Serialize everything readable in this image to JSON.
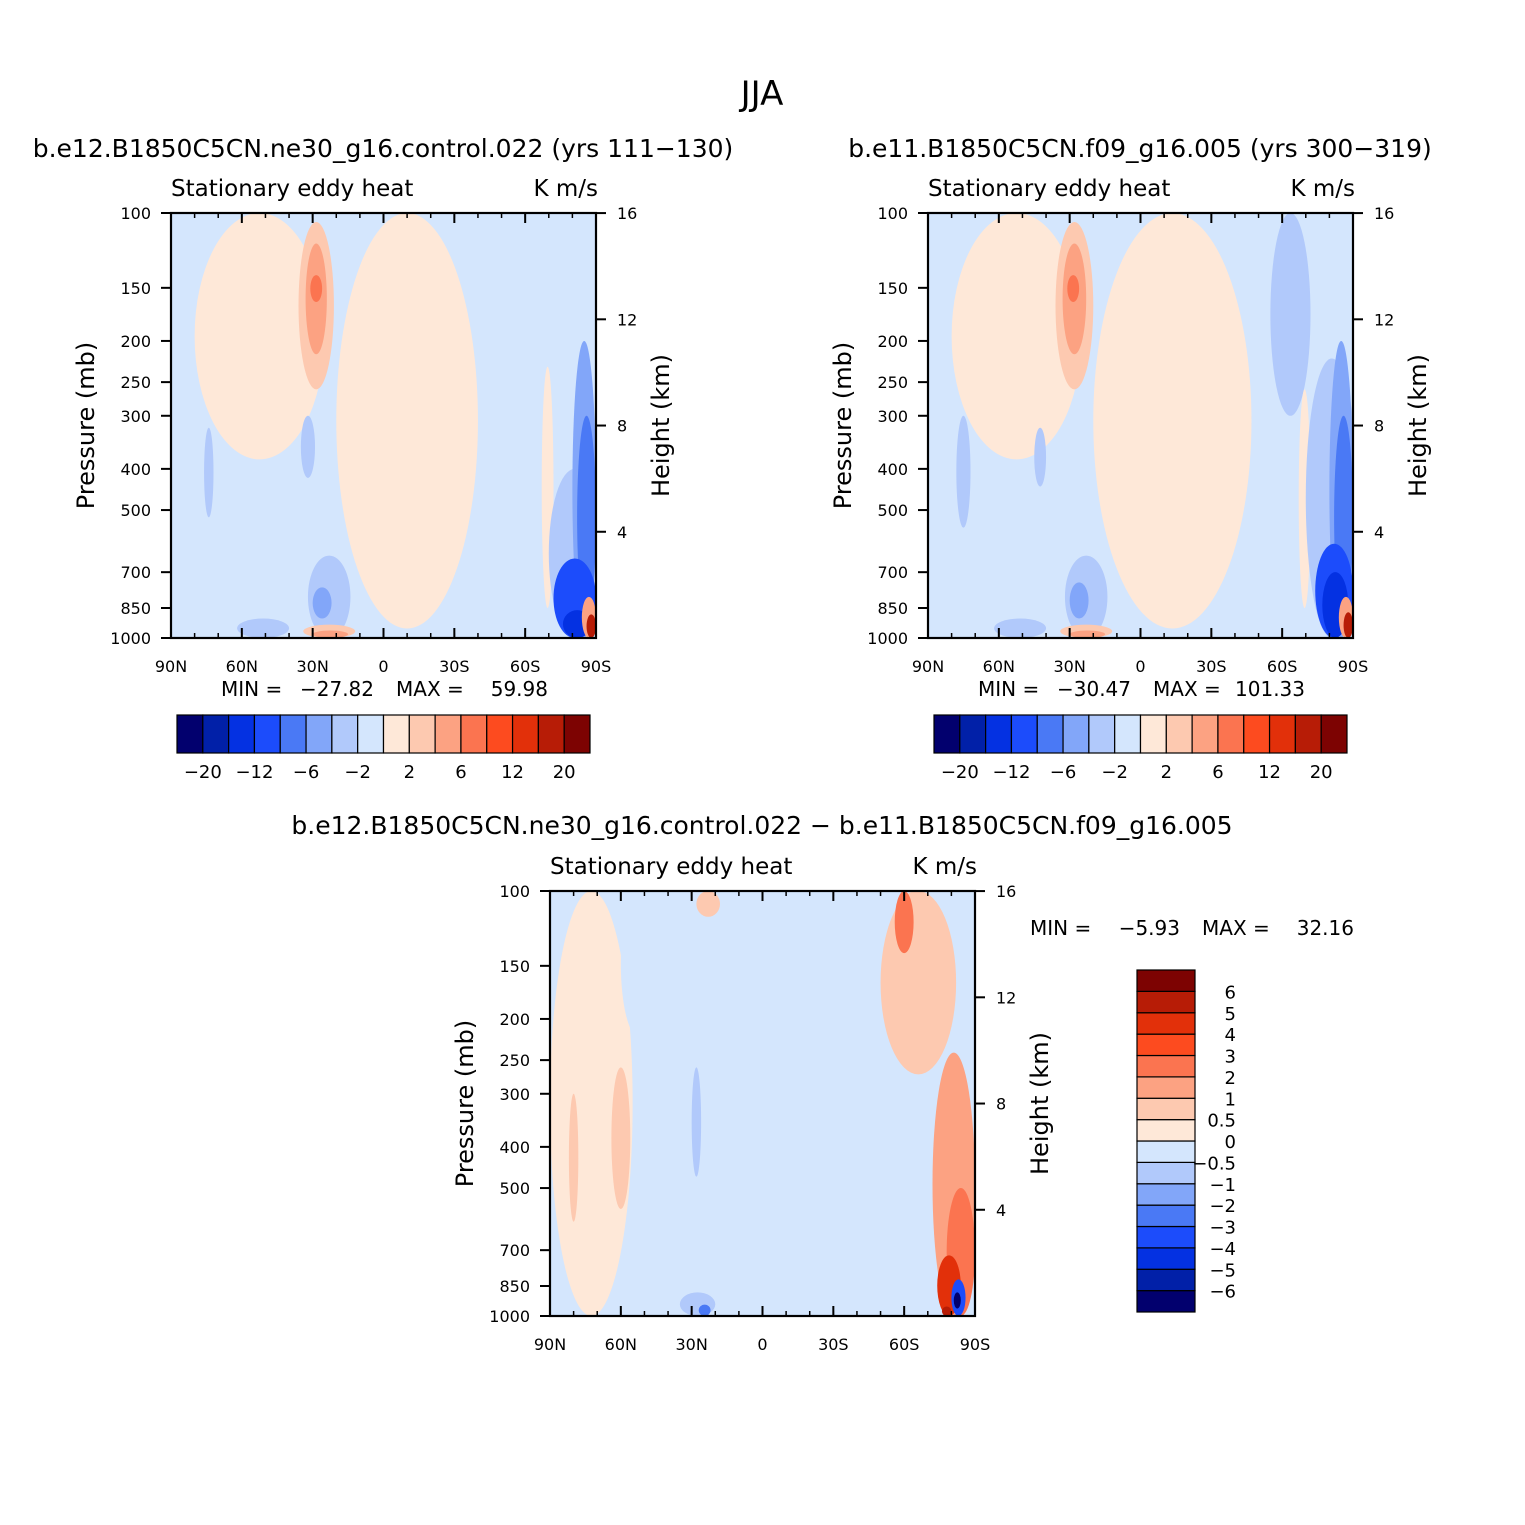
{
  "figure": {
    "title": "JJA"
  },
  "chart_data": [
    {
      "type": "heatmap",
      "title": "b.e12.B1850C5CN.ne30_g16.control.022 (yrs 111−130)",
      "left_subtitle": "Stationary eddy heat",
      "right_subtitle": "K m/s",
      "xlabel": "",
      "ylabel": "Pressure (mb)",
      "y2label": "Height (km)",
      "x_ticks": [
        "90N",
        "60N",
        "30N",
        "0",
        "30S",
        "60S",
        "90S"
      ],
      "y_ticks": [
        "100",
        "150",
        "200",
        "250",
        "300",
        "400",
        "500",
        "700",
        "850",
        "1000"
      ],
      "y2_ticks": [
        "16",
        "12",
        "8",
        "4"
      ],
      "ylim": [
        1000,
        100
      ],
      "y_scale": "log",
      "min_label": "MIN =",
      "min_value": "−27.82",
      "max_label": "MAX =",
      "max_value": "59.98",
      "colorbar": {
        "orientation": "horizontal",
        "colors": [
          "#02006e",
          "#0120a8",
          "#0431e2",
          "#1c4cfb",
          "#4a79f5",
          "#82a6f9",
          "#b1c9fb",
          "#d4e6fd",
          "#fee8d8",
          "#fdc9b0",
          "#fca282",
          "#fb7450",
          "#fd4b1f",
          "#e2300a",
          "#b71c06",
          "#7d0302"
        ],
        "labels": [
          "−20",
          "−12",
          "−6",
          "−2",
          "2",
          "6",
          "12",
          "20"
        ]
      },
      "regions": [
        {
          "value": 0.5,
          "color": "#fee8d8",
          "x": [
            -80,
            -25
          ],
          "p": [
            100,
            380
          ]
        },
        {
          "value": 0.5,
          "color": "#fee8d8",
          "x": [
            -20,
            40
          ],
          "p": [
            100,
            950
          ]
        },
        {
          "value": 2,
          "color": "#fdc9b0",
          "x": [
            -36,
            -21
          ],
          "p": [
            105,
            260
          ]
        },
        {
          "value": 6,
          "color": "#fca282",
          "x": [
            -33,
            -24
          ],
          "p": [
            118,
            215
          ]
        },
        {
          "value": 12,
          "color": "#fb7450",
          "x": [
            -31,
            -26
          ],
          "p": [
            140,
            162
          ]
        },
        {
          "value": -1,
          "color": "#b1c9fb",
          "x": [
            -76,
            -72
          ],
          "p": [
            320,
            520
          ]
        },
        {
          "value": -1,
          "color": "#b1c9fb",
          "x": [
            -35,
            -29
          ],
          "p": [
            300,
            420
          ]
        },
        {
          "value": -1,
          "color": "#b1c9fb",
          "x": [
            -32,
            -14
          ],
          "p": [
            640,
            1000
          ]
        },
        {
          "value": -2,
          "color": "#82a6f9",
          "x": [
            -30,
            -22
          ],
          "p": [
            760,
            900
          ]
        },
        {
          "value": -1,
          "color": "#b1c9fb",
          "x": [
            -62,
            -40
          ],
          "p": [
            900,
            1000
          ]
        },
        {
          "value": 2,
          "color": "#fdc9b0",
          "x": [
            -34,
            -12
          ],
          "p": [
            930,
            1000
          ]
        },
        {
          "value": 6,
          "color": "#fca282",
          "x": [
            -30,
            -15
          ],
          "p": [
            960,
            1000
          ]
        },
        {
          "value": 0.5,
          "color": "#fee8d8",
          "x": [
            67,
            72
          ],
          "p": [
            230,
            850
          ]
        },
        {
          "value": -1,
          "color": "#b1c9fb",
          "x": [
            70,
            92
          ],
          "p": [
            400,
            1000
          ]
        },
        {
          "value": -2,
          "color": "#82a6f9",
          "x": [
            80,
            90
          ],
          "p": [
            200,
            1000
          ]
        },
        {
          "value": -3,
          "color": "#4a79f5",
          "x": [
            82,
            90
          ],
          "p": [
            300,
            900
          ]
        },
        {
          "value": -6,
          "color": "#1c4cfb",
          "x": [
            72,
            90
          ],
          "p": [
            650,
            1000
          ]
        },
        {
          "value": -12,
          "color": "#0431e2",
          "x": [
            76,
            88
          ],
          "p": [
            860,
            1000
          ]
        },
        {
          "value": 6,
          "color": "#fca282",
          "x": [
            84,
            90
          ],
          "p": [
            800,
            1000
          ]
        },
        {
          "value": 20,
          "color": "#b71c06",
          "x": [
            86,
            90
          ],
          "p": [
            880,
            1000
          ]
        }
      ]
    },
    {
      "type": "heatmap",
      "title": "b.e11.B1850C5CN.f09_g16.005 (yrs 300−319)",
      "left_subtitle": "Stationary eddy heat",
      "right_subtitle": "K m/s",
      "xlabel": "",
      "ylabel": "Pressure (mb)",
      "y2label": "Height (km)",
      "x_ticks": [
        "90N",
        "60N",
        "30N",
        "0",
        "30S",
        "60S",
        "90S"
      ],
      "y_ticks": [
        "100",
        "150",
        "200",
        "250",
        "300",
        "400",
        "500",
        "700",
        "850",
        "1000"
      ],
      "y2_ticks": [
        "16",
        "12",
        "8",
        "4"
      ],
      "ylim": [
        1000,
        100
      ],
      "y_scale": "log",
      "min_label": "MIN =",
      "min_value": "−30.47",
      "max_label": "MAX =",
      "max_value": "101.33",
      "colorbar": {
        "orientation": "horizontal",
        "colors": [
          "#02006e",
          "#0120a8",
          "#0431e2",
          "#1c4cfb",
          "#4a79f5",
          "#82a6f9",
          "#b1c9fb",
          "#d4e6fd",
          "#fee8d8",
          "#fdc9b0",
          "#fca282",
          "#fb7450",
          "#fd4b1f",
          "#e2300a",
          "#b71c06",
          "#7d0302"
        ],
        "labels": [
          "−20",
          "−12",
          "−6",
          "−2",
          "2",
          "6",
          "12",
          "20"
        ]
      },
      "regions": [
        {
          "value": 0.5,
          "color": "#fee8d8",
          "x": [
            -80,
            -25
          ],
          "p": [
            100,
            380
          ]
        },
        {
          "value": 0.5,
          "color": "#fee8d8",
          "x": [
            -20,
            47
          ],
          "p": [
            100,
            950
          ]
        },
        {
          "value": 2,
          "color": "#fdc9b0",
          "x": [
            -36,
            -20
          ],
          "p": [
            105,
            260
          ]
        },
        {
          "value": 6,
          "color": "#fca282",
          "x": [
            -33,
            -23
          ],
          "p": [
            118,
            215
          ]
        },
        {
          "value": 12,
          "color": "#fb7450",
          "x": [
            -31,
            -26
          ],
          "p": [
            140,
            162
          ]
        },
        {
          "value": -1,
          "color": "#b1c9fb",
          "x": [
            55,
            72
          ],
          "p": [
            100,
            300
          ]
        },
        {
          "value": -1,
          "color": "#b1c9fb",
          "x": [
            -78,
            -72
          ],
          "p": [
            300,
            550
          ]
        },
        {
          "value": -1,
          "color": "#b1c9fb",
          "x": [
            -45,
            -40
          ],
          "p": [
            320,
            440
          ]
        },
        {
          "value": -1,
          "color": "#b1c9fb",
          "x": [
            -32,
            -14
          ],
          "p": [
            640,
            1000
          ]
        },
        {
          "value": -2,
          "color": "#82a6f9",
          "x": [
            -30,
            -22
          ],
          "p": [
            740,
            900
          ]
        },
        {
          "value": -1,
          "color": "#b1c9fb",
          "x": [
            -62,
            -40
          ],
          "p": [
            900,
            1000
          ]
        },
        {
          "value": 2,
          "color": "#fdc9b0",
          "x": [
            -34,
            -12
          ],
          "p": [
            930,
            1000
          ]
        },
        {
          "value": 6,
          "color": "#fca282",
          "x": [
            -30,
            -15
          ],
          "p": [
            960,
            1000
          ]
        },
        {
          "value": 0.5,
          "color": "#fee8d8",
          "x": [
            67,
            72
          ],
          "p": [
            260,
            850
          ]
        },
        {
          "value": -1,
          "color": "#b1c9fb",
          "x": [
            70,
            92
          ],
          "p": [
            220,
            1000
          ]
        },
        {
          "value": -2,
          "color": "#82a6f9",
          "x": [
            80,
            90
          ],
          "p": [
            200,
            1000
          ]
        },
        {
          "value": -3,
          "color": "#4a79f5",
          "x": [
            82,
            90
          ],
          "p": [
            300,
            900
          ]
        },
        {
          "value": -6,
          "color": "#1c4cfb",
          "x": [
            74,
            90
          ],
          "p": [
            600,
            1000
          ]
        },
        {
          "value": -12,
          "color": "#0431e2",
          "x": [
            77,
            88
          ],
          "p": [
            700,
            1000
          ]
        },
        {
          "value": 6,
          "color": "#fca282",
          "x": [
            84,
            90
          ],
          "p": [
            800,
            1000
          ]
        },
        {
          "value": 20,
          "color": "#b71c06",
          "x": [
            86,
            90
          ],
          "p": [
            870,
            1000
          ]
        }
      ]
    },
    {
      "type": "heatmap",
      "title": "b.e12.B1850C5CN.ne30_g16.control.022 − b.e11.B1850C5CN.f09_g16.005",
      "left_subtitle": "Stationary eddy heat",
      "right_subtitle": "K m/s",
      "xlabel": "",
      "ylabel": "Pressure (mb)",
      "y2label": "Height (km)",
      "x_ticks": [
        "90N",
        "60N",
        "30N",
        "0",
        "30S",
        "60S",
        "90S"
      ],
      "y_ticks": [
        "100",
        "150",
        "200",
        "250",
        "300",
        "400",
        "500",
        "700",
        "850",
        "1000"
      ],
      "y2_ticks": [
        "16",
        "12",
        "8",
        "4"
      ],
      "ylim": [
        1000,
        100
      ],
      "y_scale": "log",
      "min_label": "MIN =",
      "min_value": "−5.93",
      "max_label": "MAX =",
      "max_value": "32.16",
      "colorbar": {
        "orientation": "vertical",
        "colors": [
          "#02006e",
          "#0120a8",
          "#0431e2",
          "#1c4cfb",
          "#4a79f5",
          "#82a6f9",
          "#b1c9fb",
          "#d4e6fd",
          "#fee8d8",
          "#fdc9b0",
          "#fca282",
          "#fb7450",
          "#fd4b1f",
          "#e2300a",
          "#b71c06",
          "#7d0302"
        ],
        "labels": [
          "−6",
          "−5",
          "−4",
          "−3",
          "−2",
          "−1",
          "−0.5",
          "0",
          "0.5",
          "1",
          "2",
          "3",
          "4",
          "5",
          "6"
        ]
      },
      "regions": [
        {
          "value": 0.5,
          "color": "#fee8d8",
          "x": [
            -90,
            -55
          ],
          "p": [
            100,
            1000
          ]
        },
        {
          "value": -0.5,
          "color": "#d4e6fd",
          "x": [
            -60,
            -45
          ],
          "p": [
            100,
            220
          ]
        },
        {
          "value": -0.5,
          "color": "#d4e6fd",
          "x": [
            -10,
            20
          ],
          "p": [
            100,
            300
          ]
        },
        {
          "value": -0.5,
          "color": "#d4e6fd",
          "x": [
            28,
            42
          ],
          "p": [
            100,
            1000
          ]
        },
        {
          "value": -0.5,
          "color": "#d4e6fd",
          "x": [
            5,
            28
          ],
          "p": [
            520,
            1000
          ]
        },
        {
          "value": 2,
          "color": "#fdc9b0",
          "x": [
            -28,
            -18
          ],
          "p": [
            100,
            115
          ]
        },
        {
          "value": 1,
          "color": "#fdc9b0",
          "x": [
            -82,
            -78
          ],
          "p": [
            300,
            600
          ]
        },
        {
          "value": 1,
          "color": "#fdc9b0",
          "x": [
            -64,
            -56
          ],
          "p": [
            260,
            560
          ]
        },
        {
          "value": -1,
          "color": "#b1c9fb",
          "x": [
            -30,
            -26
          ],
          "p": [
            260,
            470
          ]
        },
        {
          "value": -1,
          "color": "#b1c9fb",
          "x": [
            -35,
            -20
          ],
          "p": [
            880,
            1000
          ]
        },
        {
          "value": -3,
          "color": "#4a79f5",
          "x": [
            -27,
            -22
          ],
          "p": [
            940,
            1000
          ]
        },
        {
          "value": 2,
          "color": "#fdc9b0",
          "x": [
            52,
            78
          ],
          "p": [
            100,
            230
          ]
        },
        {
          "value": 1,
          "color": "#fdc9b0",
          "x": [
            50,
            82
          ],
          "p": [
            100,
            270
          ]
        },
        {
          "value": 3,
          "color": "#fb7450",
          "x": [
            56,
            64
          ],
          "p": [
            100,
            140
          ]
        },
        {
          "value": 2,
          "color": "#fca282",
          "x": [
            72,
            90
          ],
          "p": [
            240,
            1000
          ]
        },
        {
          "value": 3,
          "color": "#fb7450",
          "x": [
            78,
            90
          ],
          "p": [
            500,
            1000
          ]
        },
        {
          "value": 5,
          "color": "#e2300a",
          "x": [
            74,
            84
          ],
          "p": [
            720,
            1000
          ]
        },
        {
          "value": -4,
          "color": "#1c4cfb",
          "x": [
            80,
            86
          ],
          "p": [
            820,
            1000
          ]
        },
        {
          "value": -6,
          "color": "#02006e",
          "x": [
            81,
            84
          ],
          "p": [
            880,
            960
          ]
        },
        {
          "value": 6,
          "color": "#b71c06",
          "x": [
            76,
            80
          ],
          "p": [
            950,
            1000
          ]
        }
      ]
    }
  ]
}
